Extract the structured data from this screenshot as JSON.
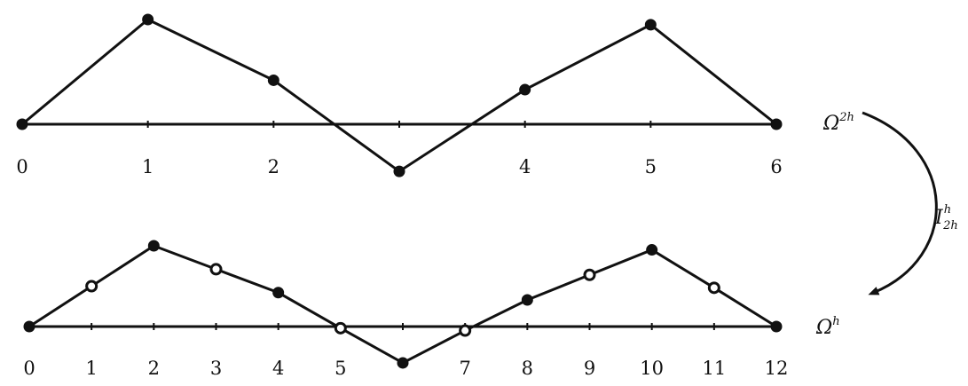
{
  "coarse_grid": {
    "label_base": "Ω",
    "label_sup": "2h",
    "tick_labels": [
      "0",
      "1",
      "2",
      "",
      "4",
      "5",
      "6"
    ],
    "values": [
      0,
      1.0,
      0.42,
      -0.45,
      0.33,
      0.95,
      0
    ]
  },
  "fine_grid": {
    "label_base": "Ω",
    "label_sup": "h",
    "tick_labels": [
      "0",
      "1",
      "2",
      "3",
      "4",
      "5",
      "",
      "7",
      "8",
      "9",
      "10",
      "11",
      "12"
    ],
    "values": [
      0,
      0.5,
      1.0,
      0.71,
      0.42,
      -0.02,
      -0.45,
      -0.05,
      0.33,
      0.64,
      0.95,
      0.48,
      0
    ],
    "interpolated_points": [
      1,
      3,
      5,
      7,
      9,
      11
    ]
  },
  "operator": {
    "label_base": "I",
    "label_sup": "h",
    "label_sub": "2h"
  },
  "colors": {
    "ink": "#111111",
    "background": "#ffffff"
  }
}
